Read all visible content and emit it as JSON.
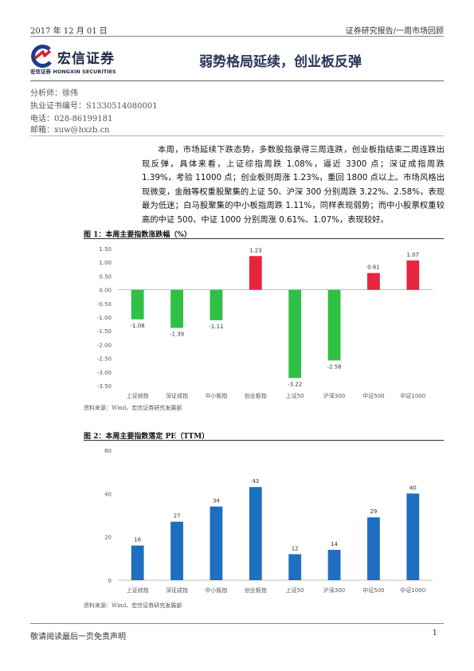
{
  "header": {
    "date": "2017 年 12 月 01 日",
    "report_type": "证券研究报告/一周市场回顾"
  },
  "logo": {
    "name_cn": "宏信证券",
    "name_en": "HONGXIN SECURITIES",
    "sub_cn": "宏信证券",
    "colors": {
      "red": "#d6202a",
      "blue": "#1f3a8a"
    }
  },
  "title": "弱势格局延续，创业板反弹",
  "author": {
    "analyst": "分析师：徐伟",
    "license": "执业证书编号：S1330514080001",
    "phone": "电话：028-86199181",
    "email": "邮箱：xuw@hxzb.cn"
  },
  "summary": "本周，市场延续下跌态势，多数股指录得三周连跌，创业板指结束二周连跌出现反弹，具体来看，上证综指周跌 1.08%，逼近 3300 点；深证成指周跌 1.39%，考验 11000 点；创业板则周涨 1.23%，重回 1800 点以上。市场风格出现微变，金融等权重股聚集的上证 50、沪深 300 分别周跌 3.22%、2.58%，表现最为低迷；白马股聚集的中小板指周跌 1.11%，同样表现弱势；而中小股票权重较高的中证 500、中证 1000 分别周涨 0.61%、1.07%，表现较好。",
  "figure1": {
    "title": "图 1：本周主要指数涨跌幅（%）",
    "source": "资料来源：Wind、宏信证券研究发展部"
  },
  "figure2": {
    "title": "图 2：本周主要指数落定 PE（TTM）",
    "source": "资料来源：Wind、宏信证券研究发展部"
  },
  "chart_data": [
    {
      "type": "bar",
      "categories": [
        "上证综指",
        "深证成指",
        "中小板指",
        "创业板指",
        "上证50",
        "沪深300",
        "中证500",
        "中证1000"
      ],
      "values": [
        -1.08,
        -1.39,
        -1.11,
        1.23,
        -3.22,
        -2.58,
        0.61,
        1.07
      ],
      "value_labels": [
        "-1.08",
        "-1.39",
        "-1.11",
        "1.23",
        "-3.22",
        "-2.58",
        "0.61",
        "1.07"
      ],
      "ylim": [
        -3.5,
        1.5
      ],
      "yticks": [
        "-3.50",
        "-3.00",
        "-2.50",
        "-2.00",
        "-1.50",
        "-1.00",
        "-0.50",
        "0.00",
        "0.50",
        "1.00",
        "1.50"
      ],
      "colors": {
        "positive": "#e8253f",
        "negative": "#2fc046"
      },
      "grid": false
    },
    {
      "type": "bar",
      "categories": [
        "上证综指",
        "深证成指",
        "中小板指",
        "创业板指",
        "上证50",
        "沪深300",
        "中证500",
        "中证1000"
      ],
      "values": [
        16,
        27,
        34,
        43,
        12,
        14,
        29,
        40
      ],
      "value_labels": [
        "16",
        "27",
        "34",
        "43",
        "12",
        "14",
        "29",
        "40"
      ],
      "ylim": [
        0,
        60
      ],
      "yticks": [
        "0",
        "20",
        "40",
        "60"
      ],
      "colors": {
        "bar": "#1f6fc0"
      },
      "grid": false
    }
  ],
  "footer": {
    "disclaimer": "敬请阅读最后一页免责声明",
    "page": "1"
  }
}
